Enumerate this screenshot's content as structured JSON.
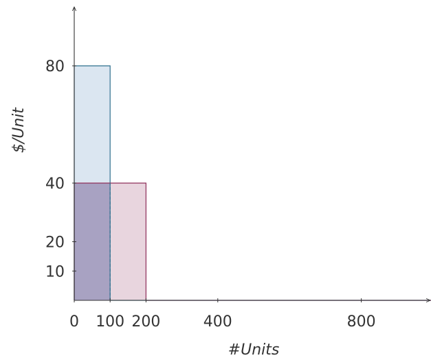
{
  "chart_data": {
    "type": "area",
    "title": "",
    "xlabel": "#Units",
    "ylabel": "$/Unit",
    "x_ticks": [
      0,
      100,
      200,
      400,
      800
    ],
    "x_tick_labels": [
      "0",
      "100",
      "200",
      "400",
      "800"
    ],
    "y_ticks": [
      10,
      20,
      40,
      80
    ],
    "y_tick_labels": [
      "10",
      "20",
      "40",
      "80"
    ],
    "xlim": [
      0,
      1000
    ],
    "ylim": [
      0,
      100
    ],
    "grid": false,
    "series": [
      {
        "color": "#2e6f8e",
        "fill": "#dbe6f1",
        "steps": [
          {
            "x0": 0,
            "x1": 100,
            "y": 80
          },
          {
            "x0": 100,
            "x1": 1000,
            "y": 0
          }
        ]
      },
      {
        "color": "#8e2e5a",
        "fill": "#e8d5de",
        "steps": [
          {
            "x0": 0,
            "x1": 200,
            "y": 40
          },
          {
            "x0": 200,
            "x1": 1000,
            "y": 0
          }
        ]
      }
    ]
  }
}
